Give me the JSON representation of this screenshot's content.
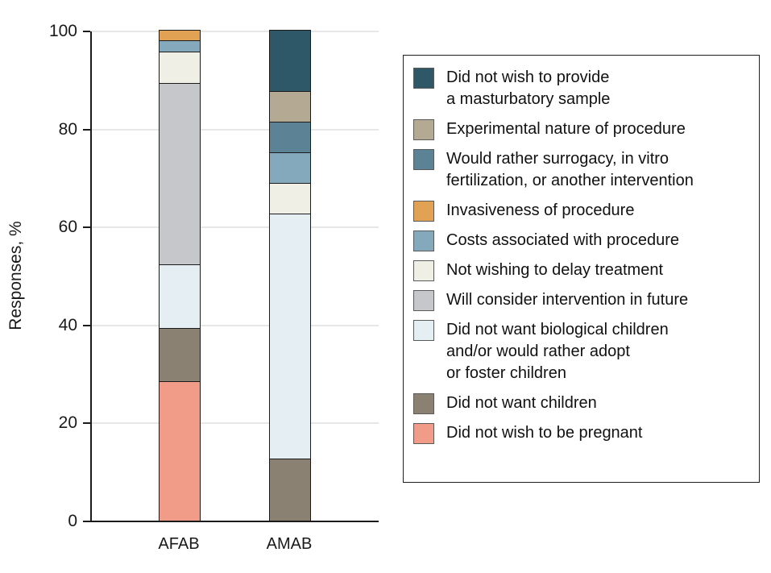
{
  "chart_data": {
    "type": "bar",
    "variant": "stacked-vertical",
    "title": "",
    "ylabel": "Responses, %",
    "xlabel": "",
    "ylim": [
      0,
      100
    ],
    "yticks": [
      0,
      20,
      40,
      60,
      80,
      100
    ],
    "grid": "horizontal",
    "legend_position": "right",
    "categories": [
      "AFAB",
      "AMAB"
    ],
    "axis_color": "#1b1b1b",
    "grid_color": "#e7e7e7",
    "series": [
      {
        "name": "Did not wish to provide a masturbatory sample",
        "legend_lines": [
          "Did not wish to provide",
          "a masturbatory sample"
        ],
        "color": "#2E5867",
        "values": [
          0,
          12.5
        ]
      },
      {
        "name": "Experimental nature of procedure",
        "legend_lines": [
          "Experimental nature of procedure"
        ],
        "color": "#B4AA94",
        "values": [
          0,
          6.25
        ]
      },
      {
        "name": "Would rather surrogacy, in vitro fertilization, or another intervention",
        "legend_lines": [
          "Would rather surrogacy, in vitro",
          "fertilization, or another intervention"
        ],
        "color": "#5C8296",
        "values": [
          0,
          6.25
        ]
      },
      {
        "name": "Invasiveness of procedure",
        "legend_lines": [
          "Invasiveness of procedure"
        ],
        "color": "#E1A254",
        "values": [
          2.2,
          0
        ]
      },
      {
        "name": "Costs associated with procedure",
        "legend_lines": [
          "Costs associated with procedure"
        ],
        "color": "#85A9BC",
        "values": [
          2.2,
          6.25
        ]
      },
      {
        "name": "Not wishing to delay treatment",
        "legend_lines": [
          "Not wishing to delay treatment"
        ],
        "color": "#EFEFE5",
        "values": [
          6.5,
          6.25
        ]
      },
      {
        "name": "Will consider intervention in future",
        "legend_lines": [
          "Will consider intervention in future"
        ],
        "color": "#C6C7CA",
        "values": [
          36.9,
          0
        ]
      },
      {
        "name": "Did not want biological children and/or would rather adopt or foster children",
        "legend_lines": [
          "Did not want biological children",
          "and/or would rather adopt",
          "or foster children"
        ],
        "color": "#E5EEF3",
        "values": [
          13.0,
          50
        ]
      },
      {
        "name": "Did not want children",
        "legend_lines": [
          "Did not want children"
        ],
        "color": "#8A8173",
        "values": [
          10.9,
          12.5
        ]
      },
      {
        "name": "Did not wish to be pregnant",
        "legend_lines": [
          "Did not wish to be pregnant"
        ],
        "color": "#F19C89",
        "values": [
          28.3,
          0
        ]
      }
    ]
  }
}
